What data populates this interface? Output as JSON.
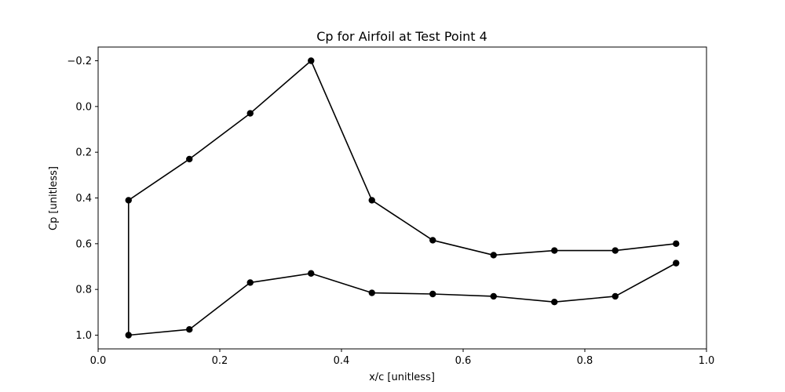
{
  "chart_data": {
    "type": "line",
    "title": "Cp for Airfoil at Test Point 4",
    "xlabel": "x/c [unitless]",
    "ylabel": "Cp [unitless]",
    "xlim": [
      0.0,
      1.0
    ],
    "ylim": [
      1.06,
      -0.26
    ],
    "y_inverted": true,
    "grid": false,
    "legend": "none",
    "x_ticks": [
      0.0,
      0.2,
      0.4,
      0.6,
      0.8,
      1.0
    ],
    "x_tick_labels": [
      "0.0",
      "0.2",
      "0.4",
      "0.6",
      "0.8",
      "1.0"
    ],
    "y_ticks": [
      -0.2,
      0.0,
      0.2,
      0.4,
      0.6,
      0.8,
      1.0
    ],
    "y_tick_labels": [
      "−0.2",
      "0.0",
      "0.2",
      "0.4",
      "0.6",
      "0.8",
      "1.0"
    ],
    "series": [
      {
        "color": "#000000",
        "marker": "circle",
        "x": [
          0.95,
          0.85,
          0.75,
          0.65,
          0.55,
          0.45,
          0.35,
          0.25,
          0.15,
          0.05,
          0.05,
          0.15,
          0.25,
          0.35,
          0.45,
          0.55,
          0.65,
          0.75,
          0.85,
          0.95
        ],
        "y": [
          0.6,
          0.63,
          0.63,
          0.65,
          0.585,
          0.41,
          -0.2,
          0.03,
          0.23,
          0.41,
          1.0,
          0.975,
          0.77,
          0.73,
          0.815,
          0.82,
          0.83,
          0.855,
          0.83,
          0.685
        ]
      }
    ]
  }
}
